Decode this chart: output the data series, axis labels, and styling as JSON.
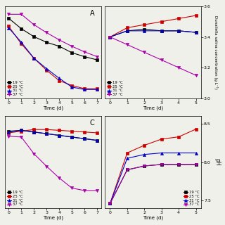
{
  "colors": {
    "19": "#000000",
    "25": "#cc0000",
    "31": "#0000cc",
    "37": "#aa00aa"
  },
  "markers": {
    "19": "s",
    "25": "s",
    "31": "^",
    "37": "v"
  },
  "panel_A": {
    "title": "A",
    "xlabel": "Time (d)",
    "xdata": [
      0,
      1,
      2,
      3,
      4,
      5,
      6,
      7
    ],
    "series": {
      "19": [
        100,
        87,
        77,
        70,
        65,
        57,
        52,
        48
      ],
      "25": [
        90,
        68,
        50,
        35,
        22,
        16,
        12,
        12
      ],
      "31": [
        88,
        70,
        50,
        37,
        25,
        14,
        11,
        11
      ],
      "37": [
        105,
        105,
        92,
        82,
        73,
        65,
        58,
        52
      ]
    },
    "ylim": [
      0,
      115
    ],
    "yticks": [],
    "legend_loc": "lower left"
  },
  "panel_B": {
    "title": "",
    "xlabel": "Time (d)",
    "ylabel": "Dunaliella salina concentration (g L⁻¹)",
    "xdata": [
      0,
      1,
      2,
      3,
      4,
      5
    ],
    "series": {
      "19": [
        3.4,
        3.44,
        3.45,
        3.44,
        3.44,
        3.43
      ],
      "25": [
        3.4,
        3.46,
        3.48,
        3.5,
        3.52,
        3.54
      ],
      "31": [
        3.4,
        3.44,
        3.44,
        3.44,
        3.44,
        3.43
      ],
      "37": [
        3.4,
        3.35,
        3.3,
        3.25,
        3.2,
        3.15
      ]
    },
    "ylim": [
      3.0,
      3.6
    ],
    "yticks": [
      3.0,
      3.2,
      3.4,
      3.6
    ],
    "legend_loc": "lower left"
  },
  "panel_C": {
    "title": "C",
    "xlabel": "Time (d)",
    "xdata": [
      0,
      1,
      2,
      3,
      4,
      5,
      6,
      7
    ],
    "series": {
      "19": [
        92,
        93,
        91,
        89,
        87,
        85,
        83,
        81
      ],
      "25": [
        90,
        92,
        94,
        94,
        93,
        92,
        91,
        90
      ],
      "31": [
        91,
        93,
        91,
        89,
        87,
        85,
        83,
        81
      ],
      "37": [
        86,
        85,
        65,
        50,
        36,
        24,
        21,
        21
      ]
    },
    "ylim": [
      0,
      110
    ],
    "yticks": [],
    "legend_loc": "lower left"
  },
  "panel_D": {
    "title": "",
    "xlabel": "Time (d)",
    "ylabel": "pH",
    "xdata": [
      0,
      1,
      2,
      3,
      4,
      5
    ],
    "series": {
      "19": [
        7.46,
        7.9,
        7.95,
        7.97,
        7.97,
        7.97
      ],
      "25": [
        7.46,
        8.12,
        8.22,
        8.3,
        8.33,
        8.43
      ],
      "31": [
        7.46,
        8.05,
        8.1,
        8.12,
        8.12,
        8.12
      ],
      "37": [
        7.46,
        7.9,
        7.95,
        7.97,
        7.97,
        7.97
      ]
    },
    "ylim": [
      7.4,
      8.6
    ],
    "yticks": [
      7.5,
      8.0,
      8.5
    ],
    "legend_loc": "lower right"
  },
  "legend_labels": {
    "19": "19 °C",
    "25": "25 °C",
    "31": "31 °C",
    "37": "37 °C"
  },
  "bg_color": "#f0f0eb",
  "marker_size": 3.0,
  "linewidth": 0.8
}
